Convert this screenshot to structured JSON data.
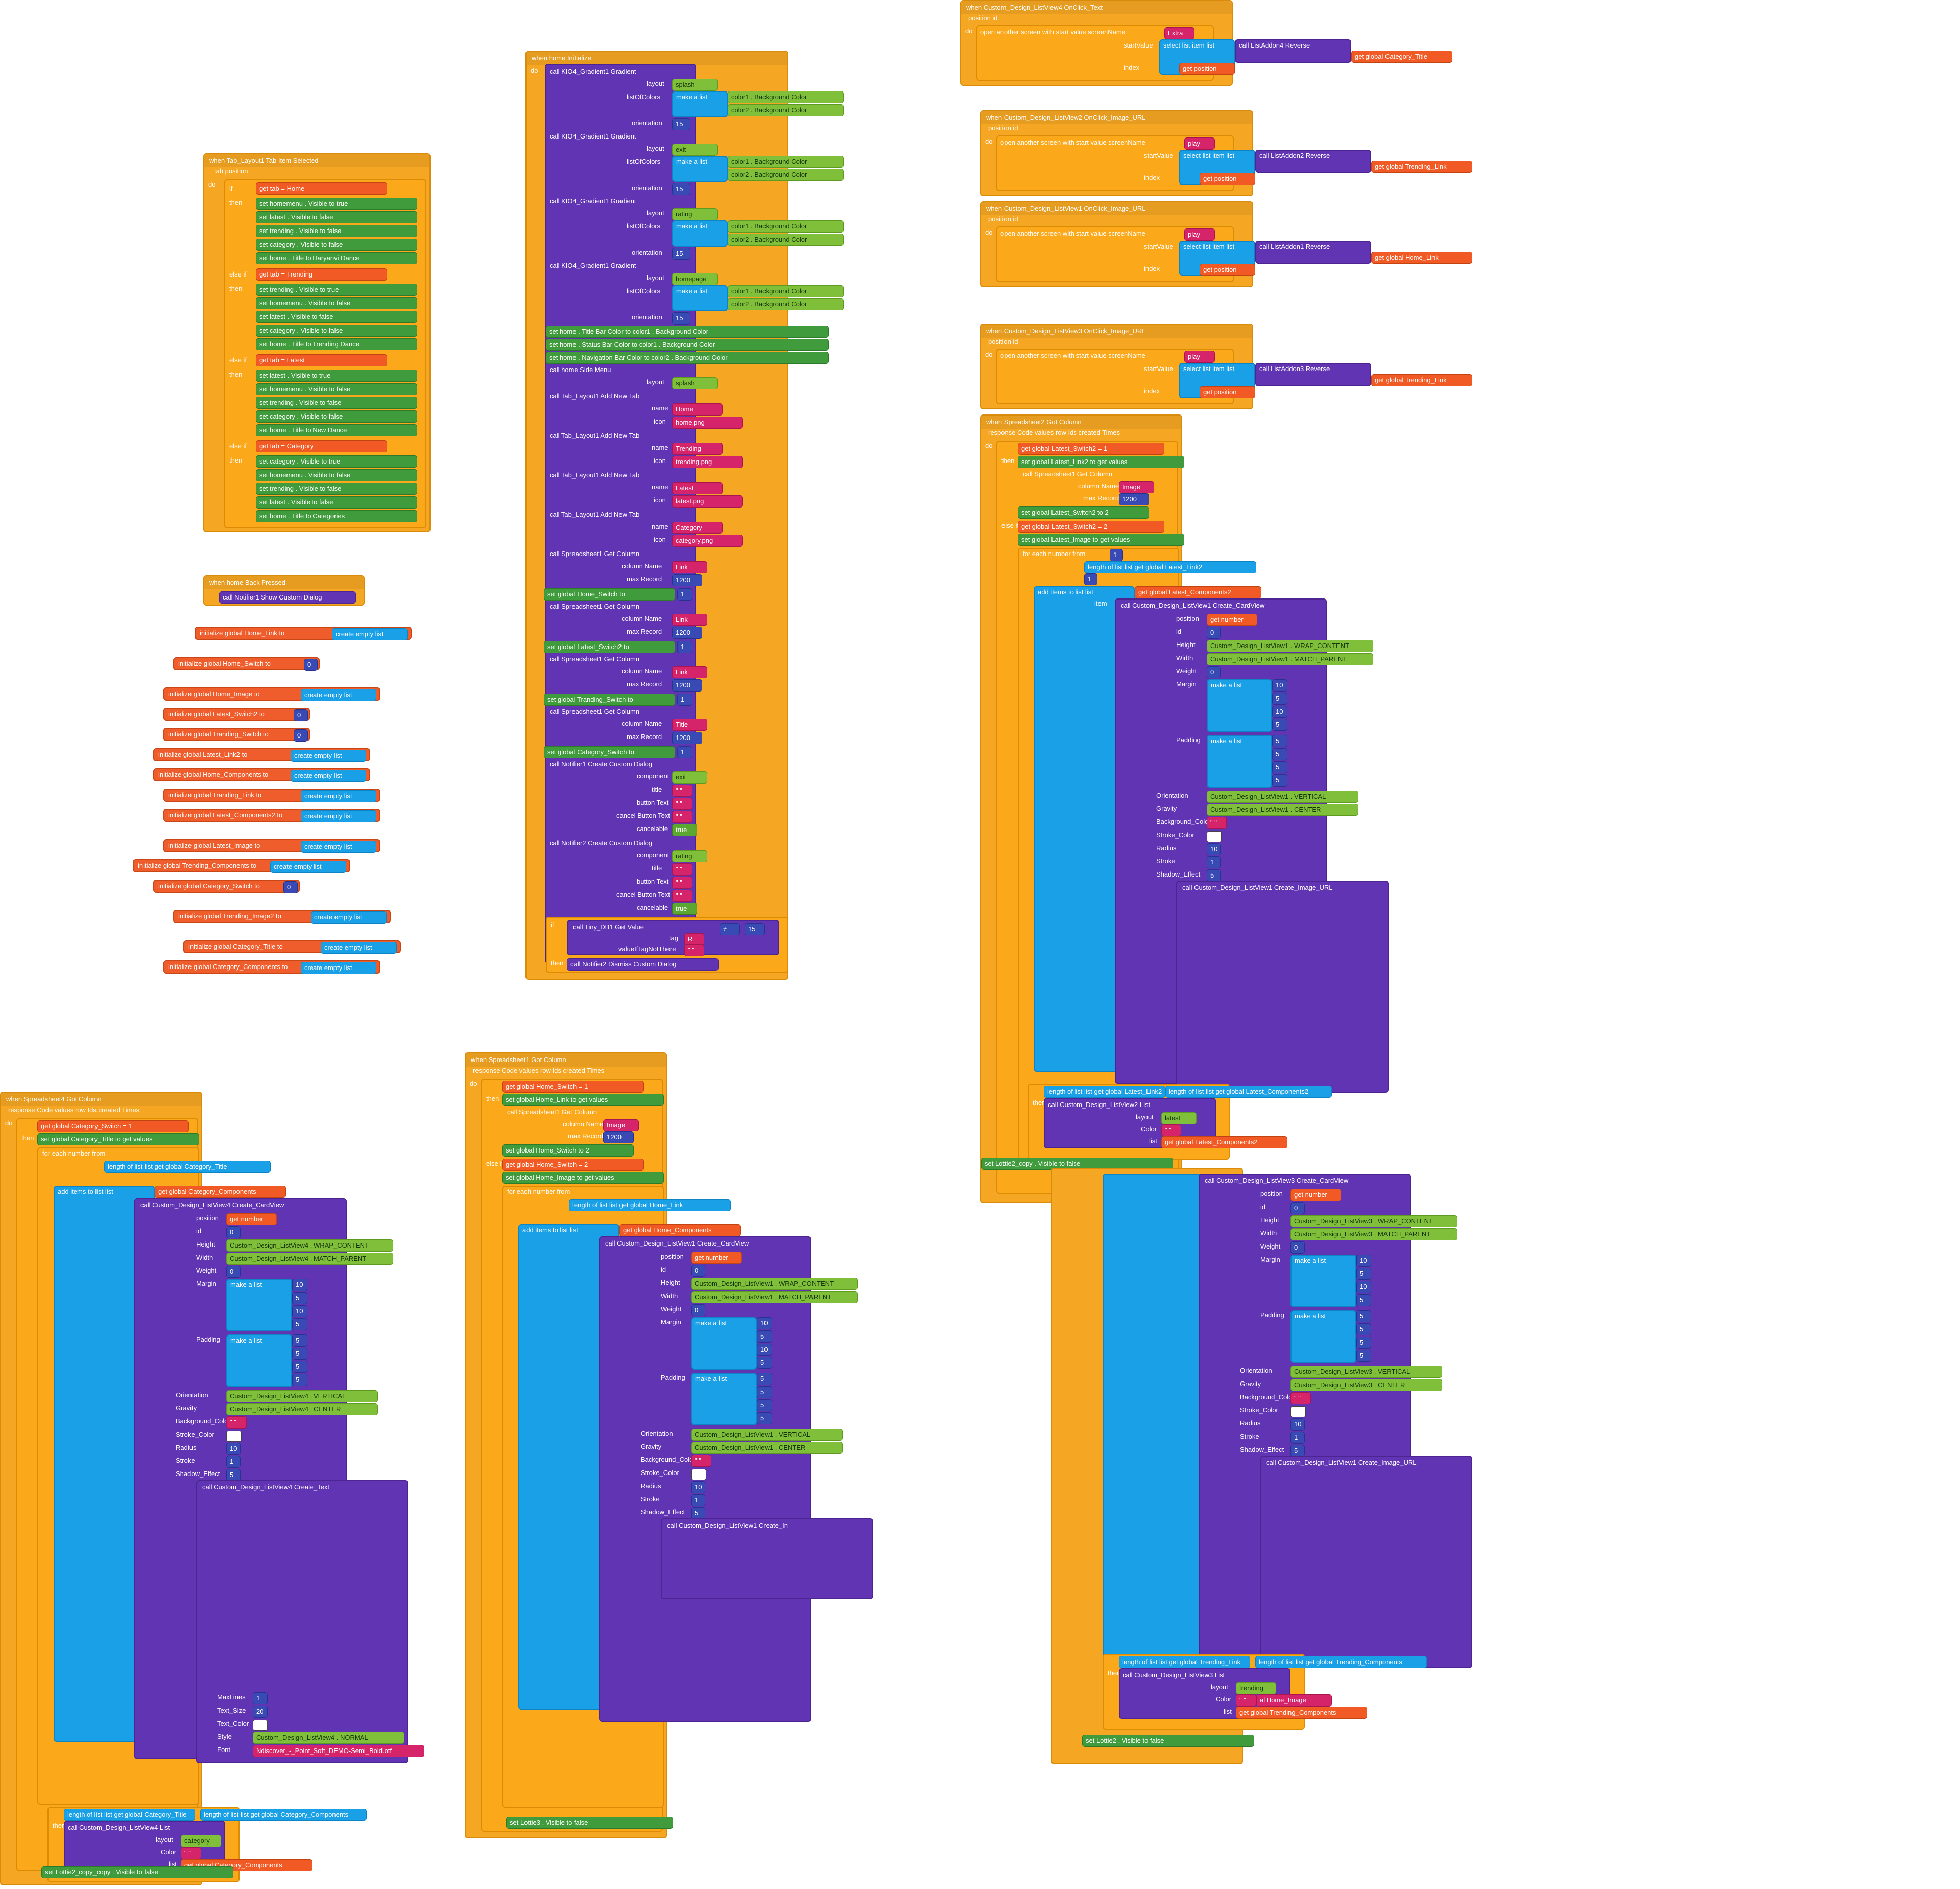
{
  "colors": {
    "event": "#f5a623",
    "procedure": "#6134b3",
    "list": "#1aa0e6",
    "global": "#ee5d2b",
    "setter": "#3f9b3b",
    "text": "#d6246b",
    "number": "#3a4ab5",
    "component": "#7fbf3a"
  },
  "events": {
    "tab_selected": {
      "when": "when",
      "component": "Tab_Layout1",
      "event": "Tab Item Selected",
      "params": [
        "tab",
        "position"
      ]
    },
    "home_initialize": {
      "when": "when",
      "component": "home",
      "event": "Initialize"
    },
    "back_pressed": {
      "when": "when",
      "component": "home",
      "event": "Back Pressed"
    },
    "listview4_onclick": {
      "when": "when",
      "component": "Custom_Design_ListView4",
      "event": "OnClick_Text",
      "params": [
        "position",
        "id"
      ],
      "screen_name": "Extra"
    },
    "listview2_onclick": {
      "when": "when",
      "component": "Custom_Design_ListView2",
      "event": "OnClick_Image_URL",
      "params": [
        "position",
        "id"
      ],
      "screen_name": "play"
    },
    "listview1_onclick": {
      "when": "when",
      "component": "Custom_Design_ListView1",
      "event": "OnClick_Image_URL",
      "params": [
        "position",
        "id"
      ],
      "screen_name": "play"
    },
    "listview3_onclick": {
      "when": "when",
      "component": "Custom_Design_ListView3",
      "event": "OnClick_Image_URL",
      "params": [
        "position",
        "id"
      ],
      "screen_name": "play"
    },
    "spreadsheet2_got": {
      "when": "when",
      "component": "Spreadsheet2",
      "event": "Got Column",
      "params": [
        "response Code",
        "values",
        "row Ids",
        "created Times"
      ]
    },
    "spreadsheet1_got": {
      "when": "when",
      "component": "Spreadsheet1",
      "event": "Got Column",
      "params": [
        "response Code",
        "values",
        "row Ids",
        "created Times"
      ]
    },
    "spreadsheet4_got": {
      "when": "when",
      "component": "Spreadsheet4",
      "event": "Got Column",
      "params": [
        "response Code",
        "values",
        "row Ids",
        "created Times"
      ]
    }
  },
  "tab_branches": [
    {
      "kw": "if",
      "tab": "Home",
      "sets": [
        [
          "homemenu",
          "Visible",
          "true"
        ],
        [
          "latest",
          "Visible",
          "false"
        ],
        [
          "trending",
          "Visible",
          "false"
        ],
        [
          "category",
          "Visible",
          "false"
        ],
        [
          "home",
          "Title",
          "Haryanvi Dance"
        ]
      ]
    },
    {
      "kw": "else if",
      "tab": "Trending",
      "sets": [
        [
          "trending",
          "Visible",
          "true"
        ],
        [
          "homemenu",
          "Visible",
          "false"
        ],
        [
          "latest",
          "Visible",
          "false"
        ],
        [
          "category",
          "Visible",
          "false"
        ],
        [
          "home",
          "Title",
          "Trending Dance"
        ]
      ]
    },
    {
      "kw": "else if",
      "tab": "Latest",
      "sets": [
        [
          "latest",
          "Visible",
          "true"
        ],
        [
          "homemenu",
          "Visible",
          "false"
        ],
        [
          "trending",
          "Visible",
          "false"
        ],
        [
          "category",
          "Visible",
          "false"
        ],
        [
          "home",
          "Title",
          "New Dance"
        ]
      ]
    },
    {
      "kw": "else if",
      "tab": "Category",
      "sets": [
        [
          "category",
          "Visible",
          "true"
        ],
        [
          "homemenu",
          "Visible",
          "false"
        ],
        [
          "trending",
          "Visible",
          "false"
        ],
        [
          "latest",
          "Visible",
          "false"
        ],
        [
          "home",
          "Title",
          "Categories"
        ]
      ]
    }
  ],
  "back_pressed_call": {
    "call": "call",
    "component": "Notifier1",
    "method": "Show Custom Dialog"
  },
  "globals": [
    {
      "name": "Home_Link",
      "value": "create empty list"
    },
    {
      "name": "Home_Switch",
      "value": "0"
    },
    {
      "name": "Home_Image",
      "value": "create empty list"
    },
    {
      "name": "Latest_Switch2",
      "value": "0"
    },
    {
      "name": "Tranding_Switch",
      "value": "0"
    },
    {
      "name": "Latest_Link2",
      "value": "create empty list"
    },
    {
      "name": "Home_Components",
      "value": "create empty list"
    },
    {
      "name": "Tranding_Link",
      "value": "create empty list"
    },
    {
      "name": "Latest_Components2",
      "value": "create empty list"
    },
    {
      "name": "Latest_Image",
      "value": "create empty list"
    },
    {
      "name": "Trending_Components",
      "value": "create empty list"
    },
    {
      "name": "Category_Switch",
      "value": "0"
    },
    {
      "name": "Trending_Image2",
      "value": "create empty list"
    },
    {
      "name": "Category_Title",
      "value": "create empty list"
    },
    {
      "name": "Category_Components",
      "value": "create empty list"
    }
  ],
  "init_prefix": "initialize global",
  "init_to": "to",
  "gradients": [
    {
      "layout": "splash",
      "orientation": "15"
    },
    {
      "layout": "exit",
      "orientation": "15"
    },
    {
      "layout": "rating",
      "orientation": "15"
    },
    {
      "layout": "homepage",
      "orientation": "15"
    }
  ],
  "gradient_labels": {
    "call": "call",
    "component": "KIO4_Gradient1",
    "method": "Gradient",
    "layout": "layout",
    "listOfColors": "listOfColors",
    "make_list": "make a list",
    "color1": "color1",
    "color2": "color2",
    "bg": "Background Color",
    "orientation": "orientation"
  },
  "home_sets": [
    {
      "prop": "Title Bar Color",
      "value": "color1",
      "val2": "Background Color"
    },
    {
      "prop": "Status Bar Color",
      "value": "color1",
      "val2": "Background Color"
    },
    {
      "prop": "Navigation Bar Color",
      "value": "color2",
      "val2": "Background Color"
    }
  ],
  "side_menu": {
    "call": "call",
    "component": "home",
    "method": "Side Menu",
    "layout": "splash"
  },
  "add_tabs": [
    {
      "name": "Home",
      "icon": "home.png"
    },
    {
      "name": "Trending",
      "icon": "trending.png"
    },
    {
      "name": "Latest",
      "icon": "latest.png"
    },
    {
      "name": "Category",
      "icon": "category.png"
    }
  ],
  "get_columns": [
    {
      "component": "Spreadsheet1",
      "column": "Link",
      "max": "1200",
      "set": "global Home_Switch",
      "val": "1"
    },
    {
      "component": "Spreadsheet1",
      "column": "Link",
      "max": "1200",
      "set": "global Latest_Switch2",
      "val": "1"
    },
    {
      "component": "Spreadsheet1",
      "column": "Link",
      "max": "1200",
      "set": "global Tranding_Switch",
      "val": "1"
    },
    {
      "component": "Spreadsheet1",
      "column": "Title",
      "max": "1200",
      "set": "global Category_Switch",
      "val": "1"
    }
  ],
  "dialogs": [
    {
      "component": "Notifier1",
      "layout": "exit",
      "cancelable": "true"
    },
    {
      "component": "Notifier2",
      "layout": "rating",
      "cancelable": "true"
    }
  ],
  "dialog_labels": {
    "method": "Create Custom Dialog",
    "component": "component",
    "title": "title",
    "button": "button Text",
    "cancel": "cancel Button Text",
    "cancelable": "cancelable"
  },
  "tinydb": {
    "call": "call",
    "component": "Tiny_DB1",
    "method": "Get Value",
    "tag": "tag",
    "tag_val": "R",
    "ifnot": "valueIfTagNotThere",
    "compare": "≠",
    "num": "15",
    "then_call": "Notifier2",
    "then_method": "Dismiss Custom Dialog"
  },
  "open_screen": {
    "label": "open another screen with start value  screenName",
    "start": "startValue",
    "select": "select list item  list",
    "reverse": "Reverse",
    "index": "index",
    "get_position": "get position"
  },
  "onclick_targets": [
    {
      "addon": "ListAddon4",
      "global": "global Category_Title"
    },
    {
      "addon": "ListAddon2",
      "global": "global Trending_Link"
    },
    {
      "addon": "ListAddon1",
      "global": "global Home_Link"
    },
    {
      "addon": "ListAddon3",
      "global": "global Trending_Link"
    }
  ],
  "card_props": {
    "method": "Create_CardView",
    "position": "position",
    "id": "id",
    "height": "Height",
    "width": "Width",
    "weight": "Weight",
    "margin": "Margin",
    "padding": "Padding",
    "orientation": "Orientation",
    "gravity": "Gravity",
    "bg": "Background_Color",
    "stroke_color": "Stroke_Color",
    "radius": "Radius",
    "stroke": "Stroke",
    "shadow": "Shadow_Effect",
    "list": "List",
    "wrap": "WRAP_CONTENT",
    "match": "MATCH_PARENT",
    "vertical": "VERTICAL",
    "center": "CENTER",
    "margin_vals": [
      "10",
      "5",
      "10",
      "5"
    ],
    "padding_vals": [
      "5",
      "5",
      "5",
      "5"
    ],
    "radius_val": "10",
    "stroke_val": "1",
    "shadow_val": "5",
    "get_number": "get number",
    "zero": "0"
  },
  "image_url": {
    "method": "Create_Image_URL",
    "responsive": "Responsive",
    "true": "true",
    "url": "URL",
    "create_empty": "create empty list",
    "margin_zero": [
      "0",
      "0",
      "0",
      "0"
    ]
  },
  "spreadsheet2": {
    "cond1": "global Latest_Switch2",
    "eq": "=",
    "v1": "1",
    "set1": "global Latest_Link2",
    "values": "get values",
    "call": "Spreadsheet1",
    "method": "Get Column",
    "column_name": "column Name",
    "column": "Image",
    "max_record": "max Record",
    "max": "1200",
    "set2": "global Latest_Switch2",
    "v2": "2",
    "set3": "global Latest_Image",
    "foreach": "for each  number  from",
    "from": "1",
    "to": "to",
    "length": "length of list  list",
    "len_of": "global Latest_Link2",
    "by": "by",
    "by_val": "1",
    "add": "add items to list  list",
    "add_to": "global Latest_Components2",
    "item": "item",
    "listview": "Custom_Design_ListView1",
    "listview2": "Custom_Design_ListView2",
    "url_global": "global Latest_Image",
    "cmp_left": "global Latest_Link2",
    "cmp_right": "global Latest_Components2",
    "list_call": "Custom_Design_ListView2",
    "list_method": "List",
    "layout": "latest",
    "color": "Color",
    "list_val": "global Latest_Components2",
    "lottie": "Lottie2_copy",
    "visible": "Visible",
    "false": "false",
    "trending_link": "global Trending_Link"
  },
  "spreadsheet2_lower": {
    "listview": "Custom_Design_ListView3",
    "url_addon": "ListAddon3",
    "url_global": "global Trending_Image2",
    "cmp_left": "global Trending_Link",
    "cmp_right": "global Trending_Components",
    "list_call": "Custom_Design_ListView3",
    "layout": "trending",
    "image": "al Home_Image",
    "list_val": "global Trending_Components",
    "lottie": "Lottie2"
  },
  "spreadsheet1": {
    "cond1": "global Home_Switch",
    "v1": "1",
    "set1": "global Home_Link",
    "call": "Spreadsheet1",
    "column": "Image",
    "max": "1200",
    "set2": "global Home_Switch",
    "v2": "2",
    "set3": "global Home_Image",
    "len_of": "global Home_Link",
    "add_to": "global Home_Components",
    "listview": "Custom_Design_ListView1",
    "create_in": "Create_In",
    "lottie": "Lottie3",
    "visible": "Visible",
    "false": "false",
    "list_val": "global Home_Components"
  },
  "spreadsheet4": {
    "cond1": "global Category_Switch",
    "v1": "1",
    "set1": "global Category_Title",
    "values": "get values",
    "len_of": "global Category_Title",
    "add_to": "global Category_Components",
    "listview": "Custom_Design_ListView4",
    "text_method": "Create_Text",
    "text": "Text",
    "select": "select list item  list",
    "addon": "ListAddon4",
    "reverse": "Reverse",
    "index": "index",
    "maxlines": "MaxLines",
    "maxlines_val": "1",
    "text_size": "Text_Size",
    "text_size_val": "20",
    "text_color": "Text_Color",
    "style": "Style",
    "normal": "NORMAL",
    "font": "Font",
    "font_val": "Ndiscover_-_Point_Soft_DEMO-Semi_Bold.otf",
    "padding_vals": [
      "2",
      "2",
      "2",
      "2"
    ],
    "margin_vals": [
      "10",
      "5",
      "10",
      "5"
    ],
    "cmp_left": "global Category_Title",
    "cmp_right": "global Category_Components",
    "list_call": "Custom_Design_ListView4",
    "layout": "category",
    "list_val": "global Category_Components",
    "lottie": "Lottie2_copy_copy",
    "visible": "Visible",
    "false": "false"
  },
  "kw": {
    "do": "do",
    "if": "if",
    "then": "then",
    "else_if": "else if",
    "set": "set",
    "to": "to",
    "get": "get",
    "call": "call",
    "name": "name",
    "icon": "icon",
    "add_tab": "Add New Tab",
    "make_list": "make a list"
  }
}
